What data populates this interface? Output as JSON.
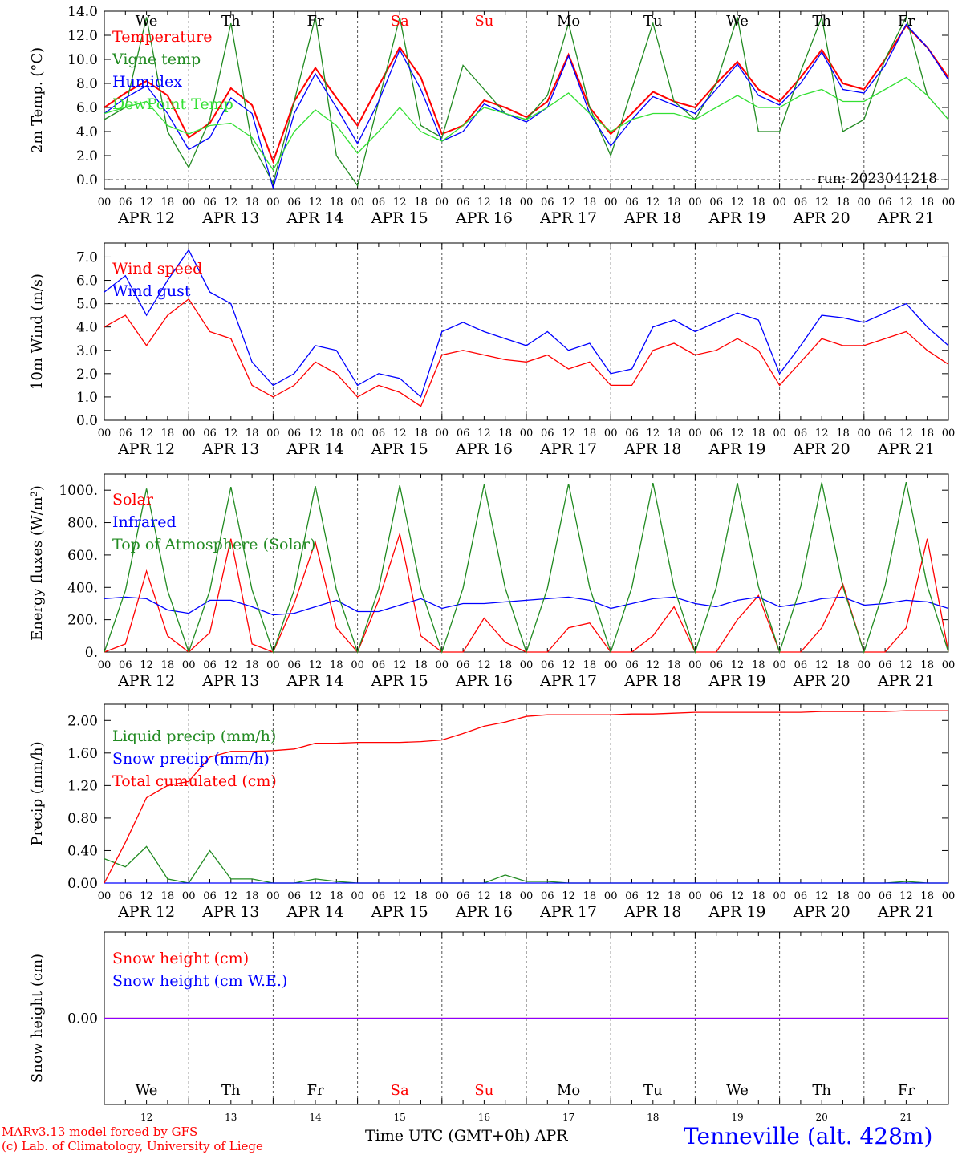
{
  "meta": {
    "run_label": "run: 2023041218",
    "station": "Tenneville (alt. 428m)",
    "credit_line1": "MARv3.13 model forced by GFS",
    "credit_line2": "(c) Lab. of Climatology, University of Liege",
    "xaxis_title": "Time UTC (GMT+0h)",
    "xaxis_month": "APR",
    "hour_ticks": [
      "00",
      "06",
      "12",
      "18"
    ],
    "days": [
      "APR 12",
      "APR 13",
      "APR 14",
      "APR 15",
      "APR 16",
      "APR 17",
      "APR 18",
      "APR 19",
      "APR 20",
      "APR 21"
    ],
    "day_numbers": [
      "12",
      "13",
      "14",
      "15",
      "16",
      "17",
      "18",
      "19",
      "20",
      "21"
    ],
    "weekdays": [
      {
        "label": "We",
        "color": "#000000"
      },
      {
        "label": "Th",
        "color": "#000000"
      },
      {
        "label": "Fr",
        "color": "#000000"
      },
      {
        "label": "Sa",
        "color": "#ff0000"
      },
      {
        "label": "Su",
        "color": "#ff0000"
      },
      {
        "label": "Mo",
        "color": "#000000"
      },
      {
        "label": "Tu",
        "color": "#000000"
      },
      {
        "label": "We",
        "color": "#000000"
      },
      {
        "label": "Th",
        "color": "#000000"
      },
      {
        "label": "Fr",
        "color": "#000000"
      }
    ],
    "colors": {
      "red": "#ff0000",
      "green": "#228b22",
      "blue": "#0000ff",
      "lightgreen": "#33e033",
      "purple": "#8b00ff"
    }
  },
  "chart_data": [
    {
      "type": "line",
      "ylabel": "2m Temp. (°C)",
      "ylim": [
        -0.8,
        14.0
      ],
      "yticks": [
        "0.0",
        "2.0",
        "4.0",
        "6.0",
        "8.0",
        "10.0",
        "12.0",
        "14.0"
      ],
      "ytick_values": [
        0,
        2,
        4,
        6,
        8,
        10,
        12,
        14
      ],
      "ref_line": 0,
      "grid": "vertical dashed lines at day boundaries",
      "legend_position": "top-left",
      "x_hours": [
        0,
        6,
        12,
        18,
        24,
        30,
        36,
        42,
        48,
        54,
        60,
        66,
        72,
        78,
        84,
        90,
        96,
        102,
        108,
        114,
        120,
        126,
        132,
        138,
        144,
        150,
        156,
        162,
        168,
        174,
        180,
        186,
        192,
        198,
        204,
        210,
        216,
        222,
        228,
        234,
        240
      ],
      "series": [
        {
          "name": "Temperature",
          "color": "#ff0000",
          "values": [
            6.0,
            7.2,
            8.2,
            7.0,
            3.5,
            4.7,
            7.6,
            6.2,
            1.5,
            6.5,
            9.3,
            6.8,
            4.5,
            7.8,
            11.0,
            8.5,
            3.8,
            4.5,
            6.6,
            6.0,
            5.2,
            6.5,
            10.4,
            6.0,
            3.8,
            5.5,
            7.3,
            6.5,
            6.0,
            8.0,
            9.8,
            7.5,
            6.5,
            8.5,
            10.8,
            8.0,
            7.5,
            10.0,
            12.8,
            11.0,
            8.5
          ]
        },
        {
          "name": "Vigne temp",
          "color": "#228b22",
          "values": [
            5.0,
            6.0,
            13.5,
            4.0,
            1.0,
            5.0,
            13.0,
            3.0,
            -0.3,
            6.5,
            13.5,
            2.0,
            -0.5,
            6.5,
            13.5,
            4.5,
            3.5,
            9.5,
            7.5,
            5.5,
            5.0,
            7.0,
            13.0,
            6.0,
            2.0,
            7.5,
            13.0,
            6.5,
            5.0,
            8.0,
            13.5,
            4.0,
            4.0,
            9.0,
            13.5,
            4.0,
            5.0,
            10.0,
            13.5,
            7.0,
            5.0
          ]
        },
        {
          "name": "Humidex",
          "color": "#0000ff",
          "values": [
            5.5,
            6.8,
            7.8,
            5.5,
            2.5,
            3.5,
            6.8,
            5.5,
            -0.7,
            5.5,
            8.8,
            6.0,
            3.0,
            6.5,
            10.8,
            7.5,
            3.2,
            4.0,
            6.3,
            5.5,
            4.8,
            6.0,
            10.3,
            5.5,
            2.8,
            5.0,
            6.9,
            6.2,
            5.5,
            7.5,
            9.6,
            7.0,
            6.2,
            8.0,
            10.6,
            7.5,
            7.2,
            9.5,
            12.9,
            11.0,
            8.3
          ]
        },
        {
          "name": "DewPoint Temp",
          "color": "#33e033",
          "values": [
            5.5,
            6.0,
            6.5,
            4.5,
            3.8,
            4.5,
            4.7,
            3.5,
            0.8,
            4.0,
            5.8,
            4.5,
            2.2,
            4.0,
            6.0,
            4.0,
            3.2,
            4.5,
            6.0,
            5.5,
            5.0,
            6.0,
            7.2,
            5.5,
            4.0,
            5.0,
            5.5,
            5.5,
            5.0,
            6.0,
            7.0,
            6.0,
            6.0,
            7.0,
            7.5,
            6.5,
            6.5,
            7.5,
            8.5,
            7.0,
            5.0
          ]
        }
      ]
    },
    {
      "type": "line",
      "ylabel": "10m Wind (m/s)",
      "ylim": [
        0.0,
        7.6
      ],
      "yticks": [
        "0.0",
        "1.0",
        "2.0",
        "3.0",
        "4.0",
        "5.0",
        "6.0",
        "7.0"
      ],
      "ytick_values": [
        0,
        1,
        2,
        3,
        4,
        5,
        6,
        7
      ],
      "ref_line": 5,
      "grid": "vertical dashed lines at day boundaries",
      "legend_position": "top-left",
      "x_hours": [
        0,
        6,
        12,
        18,
        24,
        30,
        36,
        42,
        48,
        54,
        60,
        66,
        72,
        78,
        84,
        90,
        96,
        102,
        108,
        114,
        120,
        126,
        132,
        138,
        144,
        150,
        156,
        162,
        168,
        174,
        180,
        186,
        192,
        198,
        204,
        210,
        216,
        222,
        228,
        234,
        240
      ],
      "series": [
        {
          "name": "Wind speed",
          "color": "#ff0000",
          "values": [
            4.0,
            4.5,
            3.2,
            4.5,
            5.2,
            3.8,
            3.5,
            1.5,
            1.0,
            1.5,
            2.5,
            2.0,
            1.0,
            1.5,
            1.2,
            0.6,
            2.8,
            3.0,
            2.8,
            2.6,
            2.5,
            2.8,
            2.2,
            2.5,
            1.5,
            1.5,
            3.0,
            3.3,
            2.8,
            3.0,
            3.5,
            3.0,
            1.5,
            2.5,
            3.5,
            3.2,
            3.2,
            3.5,
            3.8,
            3.0,
            2.4
          ]
        },
        {
          "name": "Wind gust",
          "color": "#0000ff",
          "values": [
            5.5,
            6.2,
            4.5,
            6.0,
            7.3,
            5.5,
            5.0,
            2.5,
            1.5,
            2.0,
            3.2,
            3.0,
            1.5,
            2.0,
            1.8,
            1.0,
            3.8,
            4.2,
            3.8,
            3.5,
            3.2,
            3.8,
            3.0,
            3.3,
            2.0,
            2.2,
            4.0,
            4.3,
            3.8,
            4.2,
            4.6,
            4.3,
            2.0,
            3.2,
            4.5,
            4.4,
            4.2,
            4.6,
            5.0,
            4.0,
            3.2
          ]
        }
      ]
    },
    {
      "type": "line",
      "ylabel": "Energy fluxes (W/m²)",
      "ylim": [
        0,
        1100
      ],
      "yticks": [
        "0.",
        "200.",
        "400.",
        "600.",
        "800.",
        "1000."
      ],
      "ytick_values": [
        0,
        200,
        400,
        600,
        800,
        1000
      ],
      "grid": "vertical dashed lines at day boundaries",
      "legend_position": "top-left",
      "x_hours": [
        0,
        6,
        12,
        18,
        24,
        30,
        36,
        42,
        48,
        54,
        60,
        66,
        72,
        78,
        84,
        90,
        96,
        102,
        108,
        114,
        120,
        126,
        132,
        138,
        144,
        150,
        156,
        162,
        168,
        174,
        180,
        186,
        192,
        198,
        204,
        210,
        216,
        222,
        228,
        234,
        240
      ],
      "series": [
        {
          "name": "Solar",
          "color": "#ff0000",
          "values": [
            0,
            50,
            500,
            100,
            0,
            120,
            700,
            50,
            0,
            300,
            680,
            150,
            0,
            320,
            730,
            100,
            0,
            0,
            210,
            60,
            0,
            0,
            150,
            180,
            0,
            0,
            100,
            280,
            0,
            0,
            200,
            350,
            0,
            0,
            150,
            420,
            0,
            0,
            150,
            700,
            0
          ]
        },
        {
          "name": "Infrared",
          "color": "#0000ff",
          "values": [
            330,
            340,
            330,
            260,
            240,
            320,
            320,
            280,
            230,
            240,
            280,
            320,
            250,
            250,
            290,
            330,
            270,
            300,
            300,
            310,
            320,
            330,
            340,
            320,
            270,
            300,
            330,
            340,
            300,
            280,
            320,
            340,
            280,
            300,
            330,
            340,
            290,
            300,
            320,
            310,
            270
          ]
        },
        {
          "name": "Top of Atmosphere (Solar)",
          "color": "#228b22",
          "values": [
            0,
            380,
            1010,
            380,
            0,
            380,
            1020,
            385,
            0,
            385,
            1025,
            385,
            0,
            390,
            1030,
            390,
            0,
            395,
            1035,
            395,
            0,
            395,
            1040,
            400,
            0,
            400,
            1045,
            400,
            0,
            400,
            1045,
            405,
            0,
            405,
            1048,
            405,
            0,
            410,
            1050,
            410,
            0
          ]
        }
      ]
    },
    {
      "type": "line",
      "ylabel": "Precip (mm/h)",
      "ylim": [
        0,
        2.2
      ],
      "yticks": [
        "0.00",
        "0.40",
        "0.80",
        "1.20",
        "1.60",
        "2.00"
      ],
      "ytick_values": [
        0,
        0.4,
        0.8,
        1.2,
        1.6,
        2.0
      ],
      "grid": "vertical dashed lines at day boundaries",
      "legend_position": "top-left",
      "x_hours": [
        0,
        6,
        12,
        18,
        24,
        30,
        36,
        42,
        48,
        54,
        60,
        66,
        72,
        78,
        84,
        90,
        96,
        102,
        108,
        114,
        120,
        126,
        132,
        138,
        144,
        150,
        156,
        162,
        168,
        174,
        180,
        186,
        192,
        198,
        204,
        210,
        216,
        222,
        228,
        234,
        240
      ],
      "series": [
        {
          "name": "Liquid precip (mm/h)",
          "color": "#228b22",
          "values": [
            0.3,
            0.2,
            0.45,
            0.05,
            0.0,
            0.4,
            0.05,
            0.05,
            0.0,
            0.0,
            0.05,
            0.02,
            0.0,
            0.0,
            0.0,
            0.0,
            0.0,
            0.0,
            0.0,
            0.1,
            0.02,
            0.02,
            0.0,
            0.0,
            0.0,
            0.0,
            0.0,
            0.0,
            0.0,
            0.0,
            0.0,
            0.0,
            0.0,
            0.0,
            0.0,
            0.0,
            0.0,
            0.0,
            0.02,
            0.0,
            0.0
          ]
        },
        {
          "name": "Snow precip (mm/h)",
          "color": "#0000ff",
          "values": [
            0,
            0,
            0,
            0,
            0,
            0,
            0,
            0,
            0,
            0,
            0,
            0,
            0,
            0,
            0,
            0,
            0,
            0,
            0,
            0,
            0,
            0,
            0,
            0,
            0,
            0,
            0,
            0,
            0,
            0,
            0,
            0,
            0,
            0,
            0,
            0,
            0,
            0,
            0,
            0,
            0
          ]
        },
        {
          "name": "Total cumulated (cm)",
          "color": "#ff0000",
          "values": [
            0.0,
            0.5,
            1.05,
            1.2,
            1.25,
            1.55,
            1.62,
            1.62,
            1.63,
            1.65,
            1.72,
            1.72,
            1.73,
            1.73,
            1.73,
            1.74,
            1.76,
            1.84,
            1.93,
            1.98,
            2.05,
            2.07,
            2.07,
            2.07,
            2.07,
            2.08,
            2.08,
            2.09,
            2.1,
            2.1,
            2.1,
            2.1,
            2.1,
            2.1,
            2.11,
            2.11,
            2.11,
            2.11,
            2.12,
            2.12,
            2.12
          ]
        }
      ]
    },
    {
      "type": "line",
      "ylabel": "Snow height (cm)",
      "ylim": [
        -1,
        1
      ],
      "yticks": [
        "0.00"
      ],
      "ytick_values": [
        0
      ],
      "grid": "vertical dashed lines at day boundaries",
      "legend_position": "top-left",
      "x_hours": [
        0,
        240
      ],
      "series": [
        {
          "name": "Snow height (cm)",
          "color": "#ff0000",
          "values": [
            0,
            0
          ]
        },
        {
          "name": "Snow height (cm W.E.)",
          "color": "#0000ff",
          "values": [
            0,
            0
          ]
        }
      ]
    }
  ]
}
